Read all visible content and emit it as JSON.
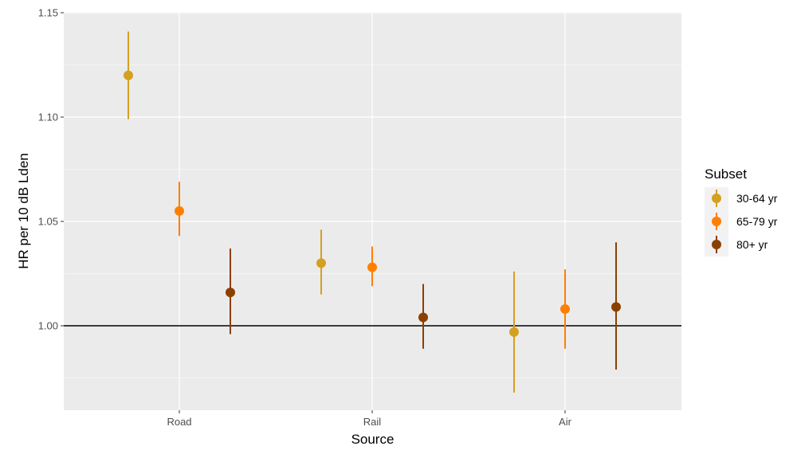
{
  "chart_data": {
    "type": "scatter",
    "title": "",
    "xlabel": "Source",
    "ylabel": "HR per 10 dB Lden",
    "categories": [
      "Road",
      "Rail",
      "Air"
    ],
    "yticks": [
      "1.00",
      "1.05",
      "1.10",
      "1.15"
    ],
    "ylim": [
      0.96,
      1.15
    ],
    "reference_line": 1.0,
    "grid": true,
    "legend": {
      "title": "Subset",
      "placement": "right"
    },
    "series": [
      {
        "name": "30-64 yr",
        "color": "#D4A020",
        "values": [
          1.12,
          1.03,
          0.997
        ],
        "lower": [
          1.099,
          1.015,
          0.968
        ],
        "upper": [
          1.141,
          1.046,
          1.026
        ]
      },
      {
        "name": "65-79 yr",
        "color": "#FF7F00",
        "values": [
          1.055,
          1.028,
          1.008
        ],
        "lower": [
          1.043,
          1.019,
          0.989
        ],
        "upper": [
          1.069,
          1.038,
          1.027
        ]
      },
      {
        "name": "80+ yr",
        "color": "#8B4000",
        "values": [
          1.016,
          1.004,
          1.009
        ],
        "lower": [
          0.996,
          0.989,
          0.979
        ],
        "upper": [
          1.037,
          1.02,
          1.04
        ]
      }
    ]
  }
}
